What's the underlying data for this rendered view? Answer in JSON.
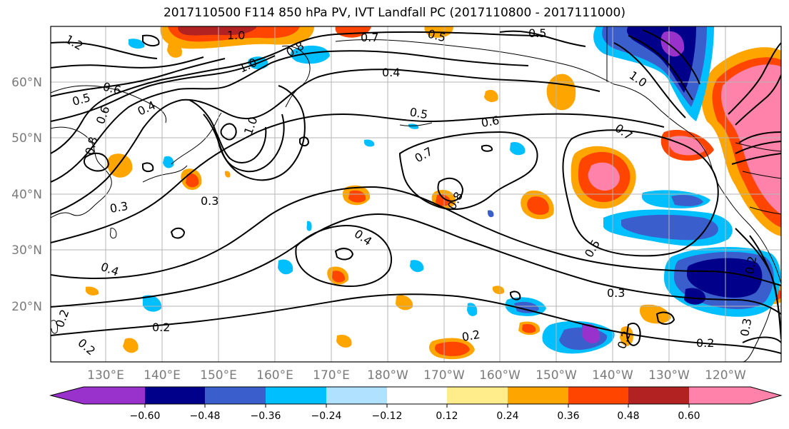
{
  "title": "2017110500 F114 850 hPa PV, IVT Landfall PC (2017110800 - 2017111000)",
  "lat_labels": [
    "60°N",
    "50°N",
    "40°N",
    "30°N",
    "20°N"
  ],
  "lon_labels": [
    "130°E",
    "140°E",
    "150°E",
    "160°E",
    "170°E",
    "180°W",
    "170°W",
    "160°W",
    "150°W",
    "140°W",
    "130°W",
    "120°W"
  ],
  "colorbar": {
    "colors": [
      "#9932cc",
      "#00008b",
      "#3a5fcd",
      "#00bfff",
      "#b0e2ff",
      "#ffffff",
      "#ffec8b",
      "#ffa500",
      "#ff4500",
      "#b22222",
      "#ff82ab"
    ],
    "tick_labels": [
      "−0.60",
      "−0.48",
      "−0.36",
      "−0.24",
      "−0.12",
      "0.12",
      "0.24",
      "0.36",
      "0.48",
      "0.60"
    ]
  },
  "contour_labels": [
    "1.2",
    "1.0",
    "0.7",
    "0.5",
    "0.5",
    "0.8",
    "1.0",
    "0.4",
    "0.6",
    "0.5",
    "0.6",
    "0.4",
    "1.0",
    "0.5",
    "0.6",
    "0.7",
    "1.0",
    "0.7",
    "0.8",
    "0.3",
    "0.8",
    "0.3",
    "0.4",
    "0.4",
    "0.5",
    "0.3",
    "0.2",
    "0.2",
    "0.2",
    "0.2",
    "0.2",
    "0.3",
    "0.2",
    "0.2"
  ]
}
